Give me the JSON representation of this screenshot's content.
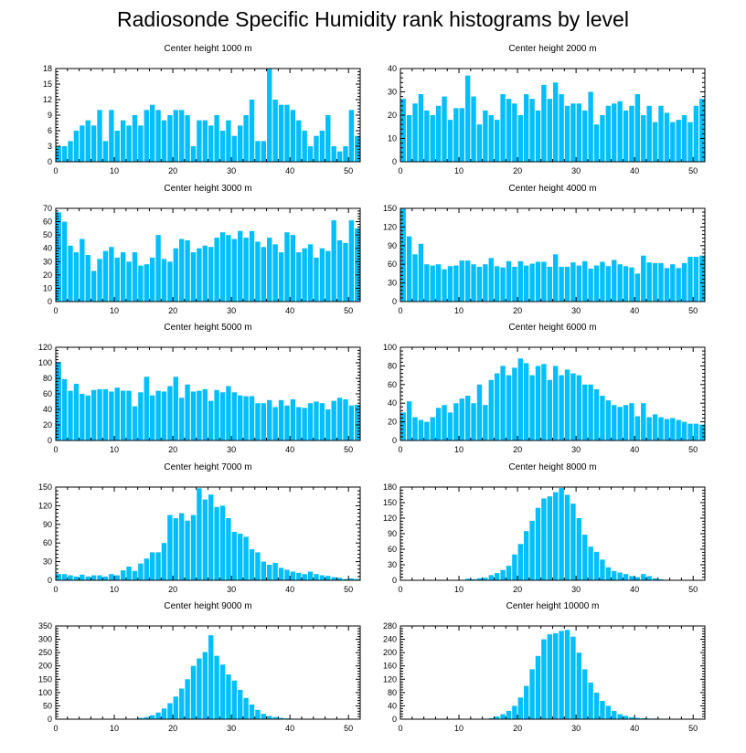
{
  "title": "Radiosonde Specific Humidity rank histograms by level",
  "bar_color": "#00bfff",
  "chart_data": [
    {
      "type": "bar",
      "title": "Center height 1000 m",
      "xlim": [
        0,
        52
      ],
      "xticks": [
        0,
        10,
        20,
        30,
        40,
        50
      ],
      "ylim": [
        0,
        18
      ],
      "yticks": [
        0,
        3,
        6,
        9,
        12,
        15,
        18
      ],
      "values": [
        3,
        3,
        4,
        6,
        7,
        8,
        7,
        10,
        4,
        10,
        6,
        8,
        7,
        9,
        7,
        10,
        11,
        10,
        8,
        9,
        10,
        10,
        9,
        3,
        8,
        8,
        7,
        9,
        6,
        8,
        5,
        7,
        9,
        12,
        4,
        4,
        18,
        12,
        11,
        11,
        10,
        8,
        6,
        3,
        5,
        6,
        9,
        3,
        2,
        3,
        10,
        5
      ]
    },
    {
      "type": "bar",
      "title": "Center height 2000 m",
      "xlim": [
        0,
        52
      ],
      "xticks": [
        0,
        10,
        20,
        30,
        40,
        50
      ],
      "ylim": [
        0,
        40
      ],
      "yticks": [
        0,
        10,
        20,
        30,
        40
      ],
      "values": [
        27,
        20,
        25,
        29,
        22,
        20,
        24,
        28,
        18,
        23,
        23,
        37,
        28,
        16,
        22,
        20,
        18,
        29,
        27,
        25,
        20,
        29,
        27,
        22,
        33,
        27,
        34,
        29,
        24,
        25,
        25,
        22,
        30,
        16,
        20,
        24,
        25,
        26,
        22,
        24,
        29,
        20,
        24,
        17,
        24,
        21,
        17,
        18,
        20,
        17,
        24,
        27
      ]
    },
    {
      "type": "bar",
      "title": "Center height 3000 m",
      "xlim": [
        0,
        52
      ],
      "xticks": [
        0,
        10,
        20,
        30,
        40,
        50
      ],
      "ylim": [
        0,
        70
      ],
      "yticks": [
        0,
        10,
        20,
        30,
        40,
        50,
        60,
        70
      ],
      "values": [
        67,
        60,
        42,
        37,
        47,
        35,
        23,
        32,
        38,
        41,
        33,
        37,
        30,
        37,
        27,
        28,
        33,
        50,
        32,
        30,
        40,
        47,
        46,
        37,
        40,
        42,
        41,
        48,
        52,
        50,
        47,
        53,
        48,
        53,
        45,
        41,
        48,
        43,
        37,
        52,
        50,
        37,
        40,
        43,
        33,
        40,
        38,
        61,
        46,
        44,
        61,
        55
      ]
    },
    {
      "type": "bar",
      "title": "Center height 4000 m",
      "xlim": [
        0,
        52
      ],
      "xticks": [
        0,
        10,
        20,
        30,
        40,
        50
      ],
      "ylim": [
        0,
        150
      ],
      "yticks": [
        0,
        30,
        60,
        90,
        120,
        150
      ],
      "values": [
        150,
        105,
        76,
        93,
        60,
        58,
        60,
        52,
        57,
        58,
        66,
        66,
        60,
        56,
        60,
        70,
        57,
        55,
        65,
        56,
        65,
        58,
        61,
        64,
        64,
        56,
        76,
        56,
        56,
        63,
        58,
        65,
        53,
        58,
        64,
        57,
        67,
        60,
        57,
        55,
        45,
        74,
        63,
        62,
        62,
        54,
        60,
        54,
        62,
        72,
        72,
        74
      ]
    },
    {
      "type": "bar",
      "title": "Center height 5000 m",
      "xlim": [
        0,
        52
      ],
      "xticks": [
        0,
        10,
        20,
        30,
        40,
        50
      ],
      "ylim": [
        0,
        120
      ],
      "yticks": [
        0,
        20,
        40,
        60,
        80,
        100,
        120
      ],
      "values": [
        101,
        79,
        64,
        73,
        60,
        58,
        65,
        66,
        66,
        63,
        68,
        64,
        64,
        44,
        62,
        82,
        58,
        64,
        63,
        70,
        82,
        55,
        72,
        63,
        64,
        66,
        51,
        65,
        62,
        70,
        62,
        58,
        57,
        57,
        48,
        48,
        52,
        43,
        52,
        45,
        53,
        43,
        42,
        48,
        50,
        48,
        40,
        51,
        55,
        53,
        45,
        46
      ]
    },
    {
      "type": "bar",
      "title": "Center height 6000 m",
      "xlim": [
        0,
        52
      ],
      "xticks": [
        0,
        10,
        20,
        30,
        40,
        50
      ],
      "ylim": [
        0,
        100
      ],
      "yticks": [
        0,
        20,
        40,
        60,
        80,
        100
      ],
      "values": [
        30,
        42,
        25,
        22,
        20,
        25,
        35,
        38,
        30,
        40,
        45,
        48,
        40,
        60,
        38,
        65,
        72,
        80,
        70,
        78,
        88,
        83,
        70,
        80,
        82,
        65,
        80,
        70,
        76,
        72,
        70,
        60,
        60,
        55,
        48,
        43,
        38,
        36,
        38,
        40,
        26,
        40,
        25,
        28,
        25,
        23,
        24,
        22,
        20,
        18,
        18,
        17
      ]
    },
    {
      "type": "bar",
      "title": "Center height 7000 m",
      "xlim": [
        0,
        52
      ],
      "xticks": [
        0,
        10,
        20,
        30,
        40,
        50
      ],
      "ylim": [
        0,
        150
      ],
      "yticks": [
        0,
        30,
        60,
        90,
        120,
        150
      ],
      "values": [
        10,
        10,
        8,
        6,
        9,
        6,
        8,
        8,
        6,
        10,
        8,
        16,
        22,
        15,
        27,
        35,
        45,
        45,
        60,
        105,
        100,
        108,
        96,
        105,
        148,
        130,
        138,
        118,
        120,
        100,
        78,
        75,
        70,
        50,
        45,
        30,
        25,
        28,
        20,
        17,
        14,
        12,
        10,
        14,
        10,
        8,
        7,
        5,
        4,
        2,
        3,
        2
      ]
    },
    {
      "type": "bar",
      "title": "Center height 8000 m",
      "xlim": [
        0,
        52
      ],
      "xticks": [
        0,
        10,
        20,
        30,
        40,
        50
      ],
      "ylim": [
        0,
        180
      ],
      "yticks": [
        0,
        30,
        60,
        90,
        120,
        150,
        180
      ],
      "values": [
        0,
        0,
        0,
        0,
        0,
        0,
        0,
        0,
        0,
        0,
        0,
        3,
        2,
        4,
        5,
        10,
        14,
        20,
        28,
        50,
        70,
        95,
        115,
        140,
        158,
        162,
        170,
        178,
        165,
        148,
        120,
        88,
        65,
        55,
        40,
        25,
        18,
        15,
        12,
        8,
        6,
        12,
        8,
        4,
        2,
        1,
        0,
        0,
        0,
        0,
        0,
        0
      ]
    },
    {
      "type": "bar",
      "title": "Center height 9000 m",
      "xlim": [
        0,
        52
      ],
      "xticks": [
        0,
        10,
        20,
        30,
        40,
        50
      ],
      "ylim": [
        0,
        350
      ],
      "yticks": [
        0,
        50,
        100,
        150,
        200,
        250,
        300,
        350
      ],
      "values": [
        0,
        0,
        0,
        0,
        0,
        0,
        0,
        0,
        0,
        0,
        0,
        0,
        0,
        2,
        5,
        8,
        15,
        25,
        40,
        60,
        85,
        115,
        150,
        200,
        228,
        252,
        315,
        238,
        205,
        168,
        145,
        110,
        80,
        55,
        35,
        20,
        12,
        8,
        5,
        3,
        2,
        1,
        0,
        0,
        0,
        0,
        0,
        0,
        0,
        0,
        0,
        0
      ]
    },
    {
      "type": "bar",
      "title": "Center height 10000 m",
      "xlim": [
        0,
        52
      ],
      "xticks": [
        0,
        10,
        20,
        30,
        40,
        50
      ],
      "ylim": [
        0,
        280
      ],
      "yticks": [
        0,
        40,
        80,
        120,
        160,
        200,
        240,
        280
      ],
      "values": [
        0,
        0,
        0,
        0,
        0,
        0,
        0,
        0,
        0,
        0,
        0,
        0,
        0,
        0,
        0,
        3,
        8,
        15,
        25,
        40,
        65,
        100,
        150,
        190,
        240,
        255,
        258,
        265,
        268,
        248,
        200,
        150,
        110,
        80,
        55,
        40,
        25,
        15,
        10,
        6,
        4,
        3,
        2,
        2,
        1,
        1,
        0,
        0,
        0,
        0,
        0,
        0
      ]
    }
  ]
}
